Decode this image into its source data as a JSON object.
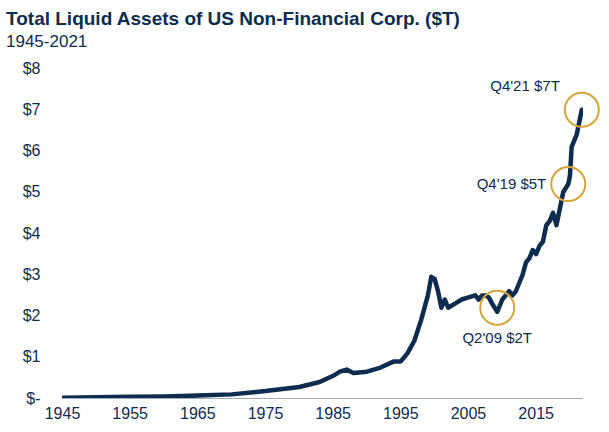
{
  "chart_data": {
    "type": "line",
    "title": "Total Liquid Assets of US Non-Financial Corp. ($T)",
    "subtitle": "1945-2021",
    "color": "#0d2c4e",
    "x": [
      1945,
      1950,
      1955,
      1960,
      1965,
      1970,
      1975,
      1980,
      1983,
      1985,
      1986,
      1987,
      1988,
      1990,
      1992,
      1994,
      1995,
      1996,
      1997,
      1998,
      1999,
      1999.5,
      2000,
      2000.5,
      2001,
      2001.5,
      2002,
      2003,
      2004,
      2005,
      2006,
      2006.5,
      2007,
      2007.5,
      2008,
      2008.5,
      2009.25,
      2009.5,
      2010,
      2010.5,
      2011,
      2011.5,
      2012,
      2012.5,
      2013,
      2013.5,
      2014,
      2014.5,
      2015,
      2015.5,
      2016,
      2016.5,
      2017,
      2017.5,
      2018,
      2018.5,
      2019,
      2019.75,
      2020,
      2020.25,
      2020.5,
      2020.75,
      2021,
      2021.25,
      2021.5,
      2021.75
    ],
    "values": [
      0.02,
      0.03,
      0.04,
      0.05,
      0.07,
      0.1,
      0.18,
      0.28,
      0.4,
      0.55,
      0.65,
      0.7,
      0.62,
      0.65,
      0.75,
      0.9,
      0.9,
      1.1,
      1.4,
      1.9,
      2.5,
      2.95,
      2.9,
      2.6,
      2.2,
      2.4,
      2.2,
      2.3,
      2.4,
      2.45,
      2.5,
      2.4,
      2.5,
      2.5,
      2.45,
      2.3,
      2.1,
      2.2,
      2.4,
      2.5,
      2.6,
      2.5,
      2.6,
      2.8,
      3.0,
      3.3,
      3.4,
      3.6,
      3.5,
      3.7,
      3.8,
      4.2,
      4.3,
      4.5,
      4.2,
      4.6,
      5.0,
      5.2,
      5.4,
      6.1,
      6.2,
      6.3,
      6.4,
      6.6,
      6.8,
      7.0
    ],
    "xlim": [
      1945,
      2022
    ],
    "xticks": [
      1945,
      1955,
      1965,
      1975,
      1985,
      1995,
      2005,
      2015
    ],
    "ylim": [
      0,
      8
    ],
    "yticks": [
      {
        "value": 0,
        "label": "$-"
      },
      {
        "value": 1,
        "label": "$1"
      },
      {
        "value": 2,
        "label": "$2"
      },
      {
        "value": 3,
        "label": "$3"
      },
      {
        "value": 4,
        "label": "$4"
      },
      {
        "value": 5,
        "label": "$5"
      },
      {
        "value": 6,
        "label": "$6"
      },
      {
        "value": 7,
        "label": "$7"
      },
      {
        "value": 8,
        "label": "$8"
      }
    ],
    "grid": false,
    "annotations": [
      {
        "label": "Q4'21 $7T",
        "x": 2021.75,
        "y": 7,
        "color": "#d4a53a"
      },
      {
        "label": "Q4'19 $5T",
        "x": 2019.75,
        "y": 5.2,
        "color": "#d4a53a"
      },
      {
        "label": "Q2'09 $2T",
        "x": 2009.25,
        "y": 2.2,
        "color": "#d4a53a"
      }
    ]
  }
}
